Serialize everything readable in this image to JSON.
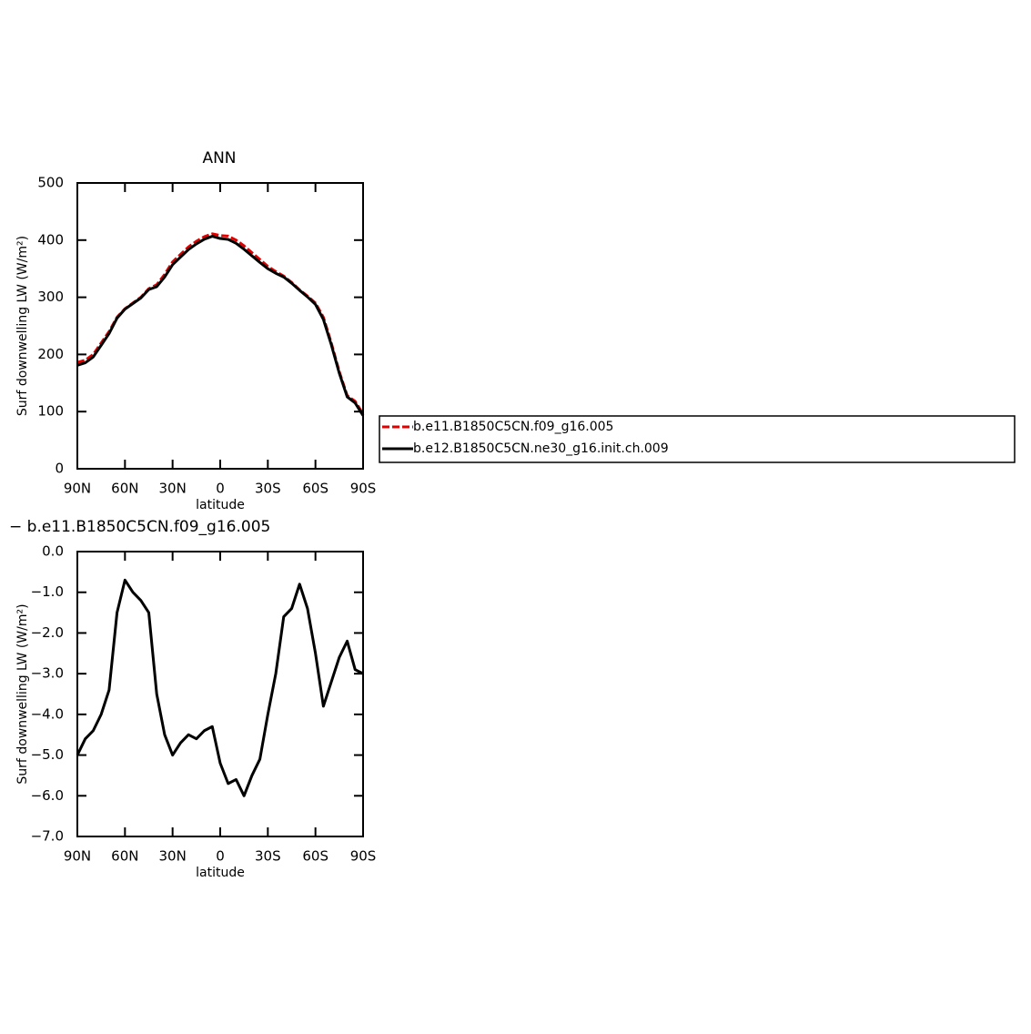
{
  "chart_data": [
    {
      "type": "line",
      "title": "ANN",
      "xlabel": "latitude",
      "ylabel": "Surf downwelling LW (W/m²)",
      "x": [
        90,
        85,
        80,
        75,
        70,
        65,
        60,
        55,
        50,
        45,
        40,
        35,
        30,
        25,
        20,
        15,
        10,
        5,
        0,
        -5,
        -10,
        -15,
        -20,
        -25,
        -30,
        -35,
        -40,
        -45,
        -50,
        -55,
        -60,
        -65,
        -70,
        -75,
        -80,
        -85,
        -90
      ],
      "series": [
        {
          "name": "b.e11.B1850C5CN.f09_g16.005",
          "color": "#e00000",
          "dash": true,
          "values": [
            186,
            190,
            200,
            220,
            240,
            265,
            280,
            290,
            300,
            315,
            322,
            340,
            362,
            375,
            388,
            398,
            406,
            411,
            408,
            407,
            400,
            390,
            378,
            366,
            354,
            345,
            337,
            326,
            313,
            302,
            290,
            265,
            220,
            170,
            128,
            118,
            96
          ]
        },
        {
          "name": "b.e12.B1850C5CN.ne30_g16.init.ch.009",
          "color": "#000000",
          "dash": false,
          "values": [
            181,
            185.4,
            195.6,
            216,
            236.6,
            263.5,
            279.3,
            289,
            298.8,
            313.5,
            318.5,
            335.5,
            357,
            370.3,
            383.5,
            393.4,
            401.6,
            406.7,
            402.8,
            401.3,
            394.4,
            384,
            372.5,
            360.9,
            350,
            342,
            335.4,
            324.6,
            312.2,
            300.6,
            287.5,
            261.2,
            216.8,
            167.4,
            125.8,
            115.1,
            93
          ]
        }
      ],
      "xlim": [
        90,
        -90
      ],
      "xticks": [
        {
          "value": 90,
          "label": "90N"
        },
        {
          "value": 60,
          "label": "60N"
        },
        {
          "value": 30,
          "label": "30N"
        },
        0,
        {
          "value": -30,
          "label": "30S"
        },
        {
          "value": -60,
          "label": "60S"
        },
        {
          "value": -90,
          "label": "90S"
        }
      ],
      "ylim": [
        0,
        500
      ],
      "yticks": [
        0,
        100,
        200,
        300,
        400,
        500
      ],
      "legend": "right"
    },
    {
      "type": "line",
      "title": "− b.e11.B1850C5CN.f09_g16.005",
      "xlabel": "latitude",
      "ylabel": "Surf downwelling LW (W/m²)",
      "x": [
        90,
        85,
        80,
        75,
        70,
        65,
        60,
        55,
        50,
        45,
        40,
        35,
        30,
        25,
        20,
        15,
        10,
        5,
        0,
        -5,
        -10,
        -15,
        -20,
        -25,
        -30,
        -35,
        -40,
        -45,
        -50,
        -55,
        -60,
        -65,
        -70,
        -75,
        -80,
        -85,
        -90
      ],
      "series": [
        {
          "color": "#000000",
          "dash": false,
          "values": [
            -5.0,
            -4.6,
            -4.4,
            -4.0,
            -3.4,
            -1.5,
            -0.7,
            -1.0,
            -1.2,
            -1.5,
            -3.5,
            -4.5,
            -5.0,
            -4.7,
            -4.5,
            -4.6,
            -4.4,
            -4.3,
            -5.2,
            -5.7,
            -5.6,
            -6.0,
            -5.5,
            -5.1,
            -4.0,
            -3.0,
            -1.6,
            -1.4,
            -0.8,
            -1.4,
            -2.5,
            -3.8,
            -3.2,
            -2.6,
            -2.2,
            -2.9,
            -3.0
          ]
        }
      ],
      "xlim": [
        90,
        -90
      ],
      "xticks": [
        {
          "value": 90,
          "label": "90N"
        },
        {
          "value": 60,
          "label": "60N"
        },
        {
          "value": 30,
          "label": "30N"
        },
        0,
        {
          "value": -30,
          "label": "30S"
        },
        {
          "value": -60,
          "label": "60S"
        },
        {
          "value": -90,
          "label": "90S"
        }
      ],
      "ylim": [
        -7,
        0
      ],
      "yticks": [
        {
          "value": -7,
          "label": "−7.0"
        },
        {
          "value": -6,
          "label": "−6.0"
        },
        {
          "value": -5,
          "label": "−5.0"
        },
        {
          "value": -4,
          "label": "−4.0"
        },
        {
          "value": -3,
          "label": "−3.0"
        },
        {
          "value": -2,
          "label": "−2.0"
        },
        {
          "value": -1,
          "label": "−1.0"
        },
        {
          "value": 0,
          "label": "0.0"
        }
      ]
    }
  ]
}
